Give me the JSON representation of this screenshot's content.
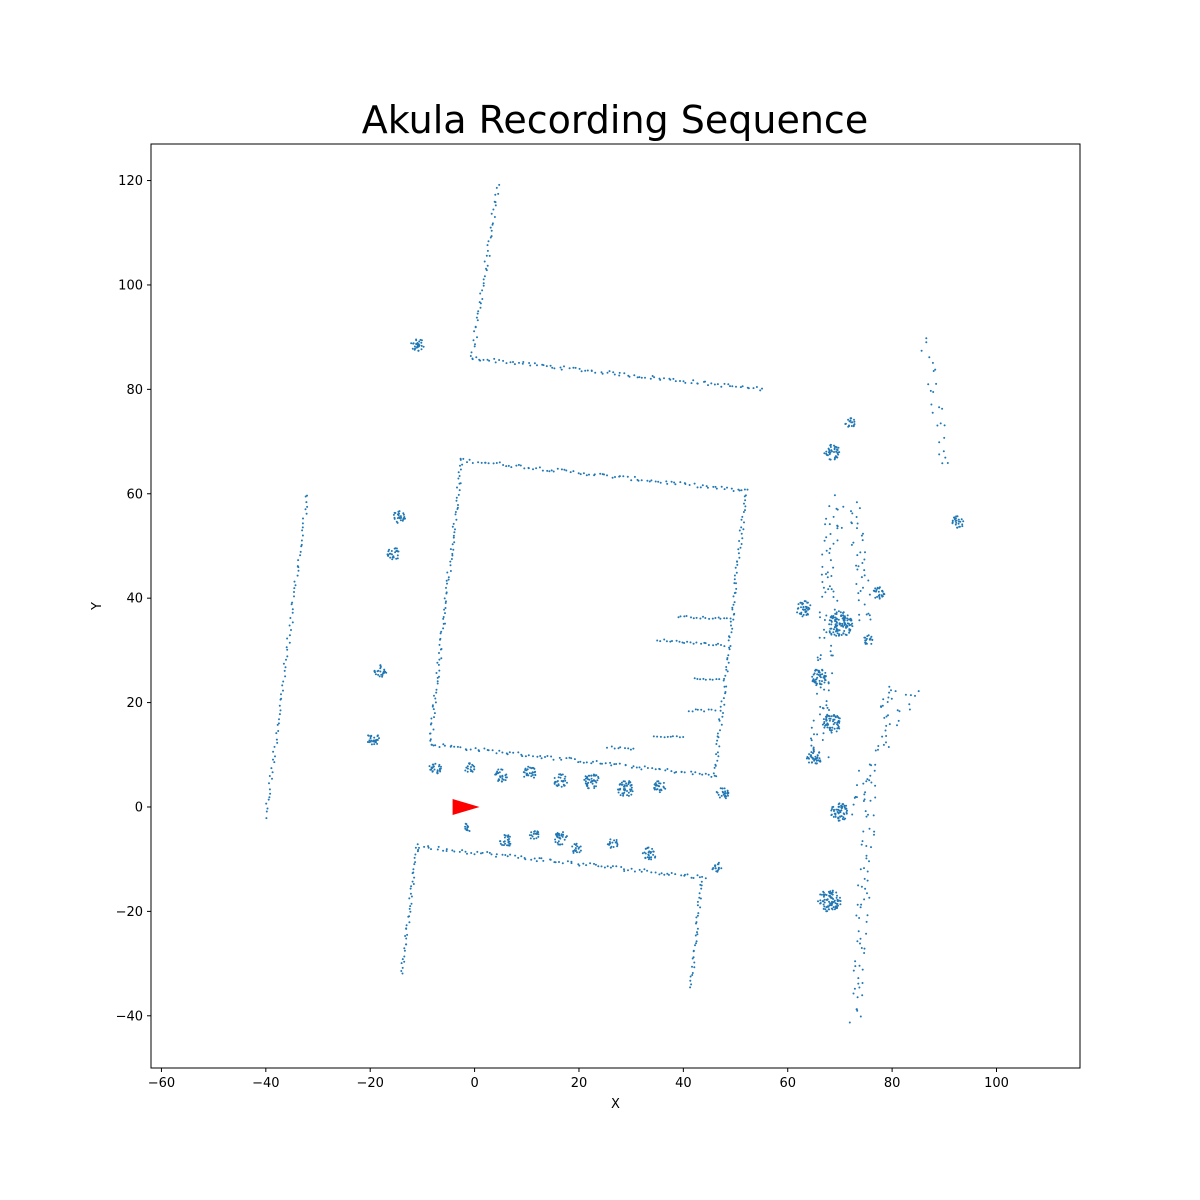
{
  "chart_data": {
    "type": "scatter",
    "title": "Akula Recording Sequence",
    "xlabel": "X",
    "ylabel": "Y",
    "xlim": [
      -62,
      116
    ],
    "ylim": [
      -50,
      127
    ],
    "xticks": [
      -60,
      -40,
      -20,
      0,
      20,
      40,
      60,
      80,
      100
    ],
    "yticks": [
      -40,
      -20,
      0,
      20,
      40,
      60,
      80,
      100,
      120
    ],
    "grid": false,
    "point_color": "#1f77b4",
    "marker": {
      "x": 0,
      "y": 0,
      "color": "#ff0000",
      "shape": "triangle-right"
    },
    "segments": [
      {
        "name": "left-line",
        "from": [
          -40,
          -2
        ],
        "to": [
          -32,
          60
        ],
        "step": 0.8,
        "jitter": 0.35
      },
      {
        "name": "L-vertical",
        "from": [
          -0.5,
          86
        ],
        "to": [
          4.5,
          119
        ],
        "step": 0.7,
        "jitter": 0.4
      },
      {
        "name": "L-horizontal",
        "from": [
          -0.5,
          86
        ],
        "to": [
          55,
          80
        ],
        "step": 0.6,
        "jitter": 0.35
      },
      {
        "name": "box-top",
        "from": [
          -2.5,
          66.5
        ],
        "to": [
          52,
          60.5
        ],
        "step": 0.6,
        "jitter": 0.35
      },
      {
        "name": "box-left",
        "from": [
          -2.5,
          66.5
        ],
        "to": [
          -8.5,
          12
        ],
        "step": 0.6,
        "jitter": 0.35
      },
      {
        "name": "box-bottom",
        "from": [
          -8.5,
          12
        ],
        "to": [
          46,
          6
        ],
        "step": 0.6,
        "jitter": 0.35
      },
      {
        "name": "box-right",
        "from": [
          52,
          60.5
        ],
        "to": [
          46,
          6
        ],
        "step": 0.6,
        "jitter": 0.35
      },
      {
        "name": "inner-line-1",
        "from": [
          39,
          36.5
        ],
        "to": [
          49,
          36
        ],
        "step": 0.6,
        "jitter": 0.2
      },
      {
        "name": "inner-line-2",
        "from": [
          35,
          32
        ],
        "to": [
          48,
          31
        ],
        "step": 0.6,
        "jitter": 0.2
      },
      {
        "name": "inner-line-3",
        "from": [
          42,
          24.5
        ],
        "to": [
          47,
          24.5
        ],
        "step": 0.6,
        "jitter": 0.2
      },
      {
        "name": "inner-line-4",
        "from": [
          41,
          18.5
        ],
        "to": [
          46,
          18.5
        ],
        "step": 0.6,
        "jitter": 0.2
      },
      {
        "name": "inner-line-5",
        "from": [
          25.5,
          11.5
        ],
        "to": [
          30.5,
          11
        ],
        "step": 0.6,
        "jitter": 0.2
      },
      {
        "name": "inner-line-6",
        "from": [
          34.5,
          13.5
        ],
        "to": [
          40,
          13.5
        ],
        "step": 0.6,
        "jitter": 0.2
      },
      {
        "name": "bottom-wall",
        "from": [
          -11,
          -7.5
        ],
        "to": [
          44,
          -13.5
        ],
        "step": 0.6,
        "jitter": 0.4
      },
      {
        "name": "bottom-left-vert",
        "from": [
          -11,
          -7.5
        ],
        "to": [
          -14,
          -32
        ],
        "step": 0.6,
        "jitter": 0.3
      },
      {
        "name": "bottom-right-vert",
        "from": [
          43.5,
          -13.5
        ],
        "to": [
          41.5,
          -34.5
        ],
        "step": 0.6,
        "jitter": 0.3
      },
      {
        "name": "right-scatter-1",
        "from": [
          86,
          89
        ],
        "to": [
          90.5,
          65
        ],
        "step": 1.0,
        "jitter": 1.2
      },
      {
        "name": "right-scatter-2",
        "from": [
          72,
          0
        ],
        "to": [
          84,
          22
        ],
        "step": 0.7,
        "jitter": 1.5
      },
      {
        "name": "right-scatter-3",
        "from": [
          73,
          -41
        ],
        "to": [
          76,
          5
        ],
        "step": 0.7,
        "jitter": 1.2
      },
      {
        "name": "right-scatter-4",
        "from": [
          66,
          10
        ],
        "to": [
          69,
          58
        ],
        "step": 0.5,
        "jitter": 1.8
      },
      {
        "name": "right-scatter-5",
        "from": [
          73,
          58
        ],
        "to": [
          75,
          35
        ],
        "step": 0.6,
        "jitter": 1.3
      },
      {
        "name": "right-scatter-6",
        "from": [
          78,
          17
        ],
        "to": [
          80,
          23
        ],
        "step": 0.5,
        "jitter": 1.0
      }
    ],
    "clusters": [
      {
        "center": [
          -11,
          88.5
        ],
        "r": 1.3
      },
      {
        "center": [
          -14.5,
          55.5
        ],
        "r": 1.2
      },
      {
        "center": [
          -15.5,
          48.5
        ],
        "r": 1.2
      },
      {
        "center": [
          -18,
          26
        ],
        "r": 1.2
      },
      {
        "center": [
          -19.5,
          13
        ],
        "r": 1.3
      },
      {
        "center": [
          -7.5,
          7.5
        ],
        "r": 1.2
      },
      {
        "center": [
          -1,
          7.5
        ],
        "r": 1.0
      },
      {
        "center": [
          5,
          6
        ],
        "r": 1.3
      },
      {
        "center": [
          10.5,
          6.5
        ],
        "r": 1.3
      },
      {
        "center": [
          16.5,
          5
        ],
        "r": 1.3
      },
      {
        "center": [
          22.5,
          5
        ],
        "r": 1.6
      },
      {
        "center": [
          29,
          3.5
        ],
        "r": 1.6
      },
      {
        "center": [
          35.5,
          4
        ],
        "r": 1.2
      },
      {
        "center": [
          47.5,
          2.5
        ],
        "r": 1.2
      },
      {
        "center": [
          -1.5,
          -4
        ],
        "r": 0.8
      },
      {
        "center": [
          6,
          -6.5
        ],
        "r": 1.2
      },
      {
        "center": [
          11.5,
          -5.5
        ],
        "r": 1.0
      },
      {
        "center": [
          16.5,
          -6
        ],
        "r": 1.3
      },
      {
        "center": [
          19.5,
          -8
        ],
        "r": 1.0
      },
      {
        "center": [
          26.5,
          -7
        ],
        "r": 1.0
      },
      {
        "center": [
          33.5,
          -9
        ],
        "r": 1.3
      },
      {
        "center": [
          46.5,
          -11.5
        ],
        "r": 1.0
      },
      {
        "center": [
          68.5,
          68
        ],
        "r": 1.5
      },
      {
        "center": [
          72,
          73.5
        ],
        "r": 1.0
      },
      {
        "center": [
          65,
          9.5
        ],
        "r": 1.5
      },
      {
        "center": [
          68.5,
          16
        ],
        "r": 1.8
      },
      {
        "center": [
          70,
          35
        ],
        "r": 2.5
      },
      {
        "center": [
          66,
          25
        ],
        "r": 1.6
      },
      {
        "center": [
          63,
          38
        ],
        "r": 1.5
      },
      {
        "center": [
          68,
          -18
        ],
        "r": 2.2
      },
      {
        "center": [
          70,
          -1
        ],
        "r": 1.8
      },
      {
        "center": [
          92.5,
          54.5
        ],
        "r": 1.2
      },
      {
        "center": [
          77.5,
          41
        ],
        "r": 1.2
      },
      {
        "center": [
          75.5,
          32
        ],
        "r": 1.0
      }
    ]
  }
}
